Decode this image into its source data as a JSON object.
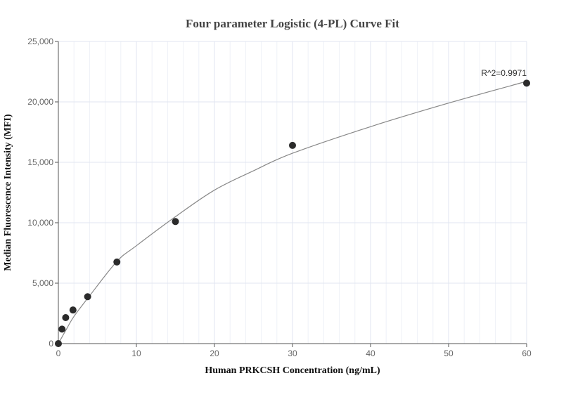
{
  "chart_data": {
    "type": "scatter",
    "title": "Four parameter Logistic (4-PL) Curve Fit",
    "xlabel": "Human PRKCSH Concentration (ng/mL)",
    "ylabel": "Median Fluorescence Intensity (MFI)",
    "xlim": [
      0,
      60
    ],
    "ylim": [
      0,
      25000
    ],
    "xticks": [
      "0",
      "10",
      "20",
      "30",
      "40",
      "50",
      "60"
    ],
    "yticks": [
      "0",
      "5,000",
      "10,000",
      "15,000",
      "20,000",
      "25,000"
    ],
    "grid": true,
    "points": {
      "x": [
        0,
        0.469,
        0.938,
        1.875,
        3.75,
        7.5,
        15,
        30,
        60
      ],
      "y": [
        0,
        1200,
        2150,
        2780,
        3880,
        6750,
        10100,
        16400,
        21550
      ]
    },
    "fit_curve": {
      "x": [
        0,
        1,
        2,
        4,
        7.5,
        10,
        15,
        20,
        25,
        30,
        40,
        50,
        60
      ],
      "y": [
        0,
        1150,
        2250,
        3950,
        6800,
        8100,
        10500,
        12700,
        14300,
        15750,
        17950,
        19900,
        21700
      ]
    },
    "annotation": "R^2=0.9971",
    "colors": {
      "points": "#2b2b2b",
      "curve": "#888888",
      "grid": "#e4e9f3"
    }
  }
}
